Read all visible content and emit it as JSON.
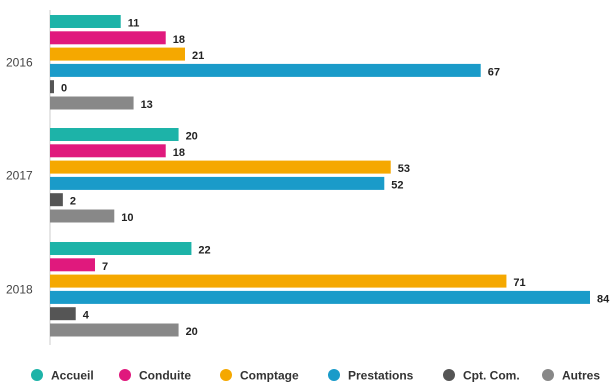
{
  "chart_data": {
    "type": "bar",
    "orientation": "horizontal",
    "categories": [
      "2016",
      "2017",
      "2018"
    ],
    "series": [
      {
        "name": "Accueil",
        "color": "#1db3a8",
        "values": [
          11,
          20,
          22
        ]
      },
      {
        "name": "Conduite",
        "color": "#e0197d",
        "values": [
          18,
          18,
          7
        ]
      },
      {
        "name": "Comptage",
        "color": "#f5a800",
        "values": [
          21,
          53,
          71
        ]
      },
      {
        "name": "Prestations",
        "color": "#1a9bc9",
        "values": [
          67,
          52,
          84
        ]
      },
      {
        "name": "Cpt. Com.",
        "color": "#555555",
        "values": [
          0,
          2,
          4
        ]
      },
      {
        "name": "Autres",
        "color": "#888888",
        "values": [
          13,
          10,
          20
        ]
      }
    ],
    "xlim": [
      0,
      84
    ],
    "grid": false,
    "legend_position": "bottom"
  }
}
